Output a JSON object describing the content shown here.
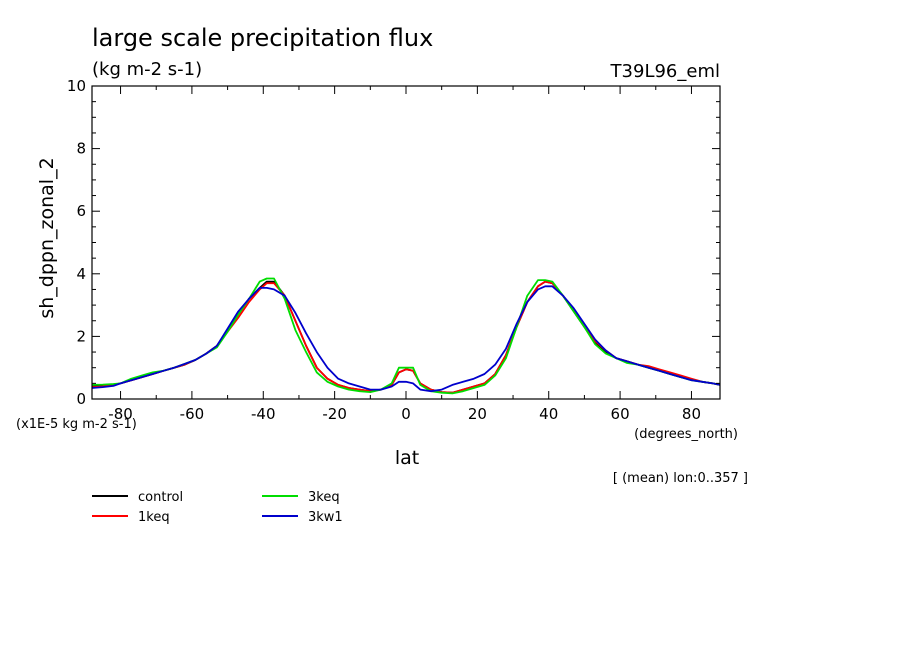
{
  "chart_data": {
    "type": "line",
    "title": "large scale precipitation flux",
    "units": "(kg m-2 s-1)",
    "model_label": "T39L96_eml",
    "xlabel": "lat",
    "xunits": "(degrees_north)",
    "ylabel": "sh_dppn_zonal_2",
    "yscale_note": "(x1E-5 kg m-2 s-1)",
    "footnote": "[ (mean) lon:0..357 ]",
    "xlim": [
      -88,
      88
    ],
    "ylim": [
      0,
      10
    ],
    "xticks": [
      -80,
      -60,
      -40,
      -20,
      0,
      20,
      40,
      60,
      80
    ],
    "xtick_labels": [
      "-80",
      "-60",
      "-40",
      "-20",
      "0",
      "20",
      "40",
      "60",
      "80"
    ],
    "yticks": [
      0,
      2,
      4,
      6,
      8,
      10
    ],
    "ytick_labels": [
      "0",
      "2",
      "4",
      "6",
      "8",
      "10"
    ],
    "grid": false,
    "legend_position": "bottom",
    "x": [
      -88,
      -85,
      -82,
      -80,
      -77,
      -74,
      -71,
      -68,
      -65,
      -62,
      -59,
      -56,
      -53,
      -50,
      -47,
      -44,
      -41,
      -39,
      -37,
      -34,
      -31,
      -28,
      -25,
      -22,
      -19,
      -16,
      -13,
      -10,
      -7,
      -4,
      -2,
      0,
      2,
      4,
      7,
      10,
      13,
      16,
      19,
      22,
      25,
      28,
      31,
      34,
      37,
      39,
      41,
      44,
      47,
      50,
      53,
      56,
      59,
      62,
      65,
      68,
      71,
      74,
      77,
      80,
      83,
      86,
      88
    ],
    "series": [
      {
        "name": "control",
        "color": "#000000",
        "values": [
          0.4,
          0.42,
          0.45,
          0.5,
          0.6,
          0.7,
          0.8,
          0.9,
          1.0,
          1.1,
          1.25,
          1.45,
          1.7,
          2.2,
          2.7,
          3.2,
          3.55,
          3.75,
          3.75,
          3.3,
          2.5,
          1.7,
          1.0,
          0.65,
          0.45,
          0.35,
          0.3,
          0.25,
          0.3,
          0.45,
          0.85,
          0.95,
          0.9,
          0.5,
          0.3,
          0.22,
          0.2,
          0.3,
          0.4,
          0.5,
          0.8,
          1.4,
          2.3,
          3.1,
          3.6,
          3.75,
          3.7,
          3.3,
          2.8,
          2.3,
          1.8,
          1.5,
          1.3,
          1.2,
          1.1,
          1.0,
          0.9,
          0.8,
          0.7,
          0.62,
          0.55,
          0.5,
          0.45
        ]
      },
      {
        "name": "1keq",
        "color": "#ff0000",
        "values": [
          0.38,
          0.4,
          0.45,
          0.5,
          0.6,
          0.7,
          0.8,
          0.9,
          1.0,
          1.1,
          1.25,
          1.45,
          1.7,
          2.15,
          2.6,
          3.1,
          3.5,
          3.7,
          3.7,
          3.3,
          2.5,
          1.7,
          1.0,
          0.65,
          0.45,
          0.35,
          0.3,
          0.25,
          0.3,
          0.45,
          0.85,
          0.95,
          0.9,
          0.5,
          0.3,
          0.22,
          0.2,
          0.3,
          0.4,
          0.5,
          0.8,
          1.4,
          2.3,
          3.1,
          3.6,
          3.75,
          3.7,
          3.3,
          2.85,
          2.35,
          1.85,
          1.55,
          1.3,
          1.2,
          1.1,
          1.05,
          0.95,
          0.85,
          0.75,
          0.65,
          0.55,
          0.5,
          0.45
        ]
      },
      {
        "name": "3keq",
        "color": "#00dd00",
        "values": [
          0.45,
          0.46,
          0.48,
          0.5,
          0.65,
          0.75,
          0.85,
          0.9,
          1.0,
          1.12,
          1.25,
          1.45,
          1.65,
          2.15,
          2.7,
          3.2,
          3.75,
          3.85,
          3.85,
          3.2,
          2.2,
          1.5,
          0.85,
          0.55,
          0.4,
          0.3,
          0.25,
          0.22,
          0.3,
          0.5,
          1.0,
          1.0,
          1.0,
          0.45,
          0.25,
          0.2,
          0.18,
          0.25,
          0.35,
          0.45,
          0.75,
          1.3,
          2.3,
          3.3,
          3.8,
          3.8,
          3.75,
          3.3,
          2.8,
          2.3,
          1.75,
          1.45,
          1.3,
          1.15,
          1.1,
          1.0,
          0.9,
          0.8,
          0.7,
          0.6,
          0.55,
          0.5,
          0.45
        ]
      },
      {
        "name": "3kw1",
        "color": "#0000cc",
        "values": [
          0.35,
          0.38,
          0.42,
          0.5,
          0.6,
          0.7,
          0.8,
          0.9,
          1.0,
          1.12,
          1.25,
          1.45,
          1.7,
          2.25,
          2.8,
          3.2,
          3.55,
          3.55,
          3.5,
          3.3,
          2.75,
          2.1,
          1.5,
          1.0,
          0.65,
          0.5,
          0.4,
          0.3,
          0.3,
          0.4,
          0.55,
          0.55,
          0.5,
          0.3,
          0.25,
          0.3,
          0.45,
          0.55,
          0.65,
          0.8,
          1.1,
          1.6,
          2.4,
          3.1,
          3.5,
          3.6,
          3.6,
          3.3,
          2.9,
          2.4,
          1.9,
          1.55,
          1.3,
          1.2,
          1.1,
          1.0,
          0.9,
          0.8,
          0.7,
          0.6,
          0.55,
          0.5,
          0.45
        ]
      }
    ]
  }
}
